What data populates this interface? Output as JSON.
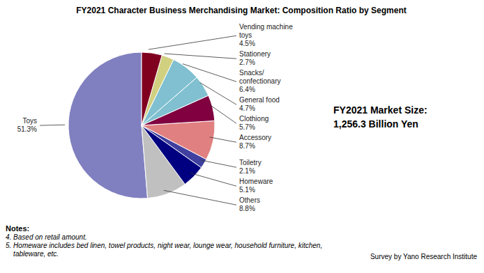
{
  "chart_data": {
    "type": "pie",
    "title": "FY2021 Character Business Merchandising Market: Composition Ratio by Segment",
    "categories": [
      "Toys",
      "Others",
      "Homeware",
      "Toiletry",
      "Accessory",
      "Clothiong",
      "General food",
      "Snacks/\nconfectionary",
      "Stationery",
      "Vending machine\ntoys"
    ],
    "values": [
      51.3,
      8.8,
      5.1,
      2.1,
      8.7,
      5.7,
      4.7,
      6.4,
      2.7,
      4.5
    ],
    "value_labels": [
      "51.3%",
      "8.8%",
      "5.1%",
      "2.1%",
      "8.7%",
      "5.7%",
      "4.7%",
      "6.4%",
      "2.7%",
      "4.5%"
    ],
    "colors": [
      "#8080C0",
      "#C0C0C0",
      "#000080",
      "#4040A0",
      "#E08080",
      "#800040",
      "#80C0D0",
      "#80C0D0",
      "#D0D080",
      "#800020"
    ],
    "annotations": [
      "FY2021 Market Size:\n1,256.3 Billion Yen",
      "Notes:\n4. Based on retail amount.\n5. Homeware includes bed linen, towel products, night wear, lounge wear, household furniture, kitchen,\n    tableware, etc.",
      "Survey by Yano Research Institute"
    ]
  }
}
